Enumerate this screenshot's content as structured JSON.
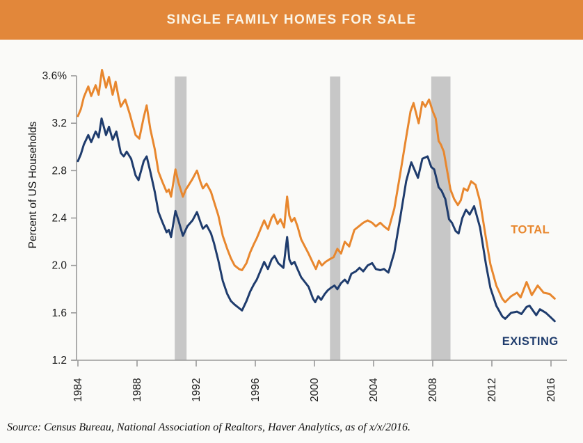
{
  "header": {
    "title": "SINGLE FAMILY HOMES FOR SALE",
    "bg_color": "#E2873A"
  },
  "source": {
    "text": "Source: Census Bureau, National Association of Realtors, Haver Analytics, as of x/x/2016."
  },
  "chart_data": {
    "type": "line",
    "title": "SINGLE FAMILY HOMES FOR SALE",
    "xlabel": "",
    "ylabel": "Percent of US Households",
    "ylim": [
      1.2,
      3.6
    ],
    "xlim": [
      1984,
      2017
    ],
    "grid": false,
    "legend_position": "inline-right",
    "x_ticks": [
      1984,
      1988,
      1992,
      1996,
      2000,
      2004,
      2008,
      2012,
      2016
    ],
    "y_ticks": [
      {
        "value": 3.6,
        "label": "3.6%"
      },
      {
        "value": 3.2,
        "label": "3.2"
      },
      {
        "value": 2.8,
        "label": "2.8"
      },
      {
        "value": 2.4,
        "label": "2.4"
      },
      {
        "value": 2.0,
        "label": "2.0"
      },
      {
        "value": 1.6,
        "label": "1.6"
      },
      {
        "value": 1.2,
        "label": "1.2"
      }
    ],
    "recession_bands": [
      {
        "from": 1990.55,
        "to": 1991.35
      },
      {
        "from": 2001.05,
        "to": 2001.75
      },
      {
        "from": 2007.9,
        "to": 2009.2
      }
    ],
    "colors": {
      "band": "#C7C7C7",
      "axis": "#999999",
      "tick_text": "#1A1A1A"
    },
    "series": [
      {
        "name": "TOTAL",
        "color": "#E8872E",
        "label_pos": {
          "x": 2014.6,
          "y": 2.27
        },
        "points": [
          [
            1984.0,
            3.26
          ],
          [
            1984.2,
            3.32
          ],
          [
            1984.4,
            3.42
          ],
          [
            1984.7,
            3.51
          ],
          [
            1984.9,
            3.43
          ],
          [
            1985.2,
            3.52
          ],
          [
            1985.4,
            3.44
          ],
          [
            1985.63,
            3.65
          ],
          [
            1985.9,
            3.5
          ],
          [
            1986.1,
            3.59
          ],
          [
            1986.35,
            3.44
          ],
          [
            1986.55,
            3.55
          ],
          [
            1986.75,
            3.42
          ],
          [
            1986.9,
            3.34
          ],
          [
            1987.2,
            3.4
          ],
          [
            1987.5,
            3.28
          ],
          [
            1987.9,
            3.1
          ],
          [
            1988.15,
            3.07
          ],
          [
            1988.45,
            3.25
          ],
          [
            1988.65,
            3.35
          ],
          [
            1988.9,
            3.15
          ],
          [
            1989.2,
            2.98
          ],
          [
            1989.45,
            2.79
          ],
          [
            1989.7,
            2.71
          ],
          [
            1990.0,
            2.62
          ],
          [
            1990.15,
            2.64
          ],
          [
            1990.3,
            2.58
          ],
          [
            1990.6,
            2.81
          ],
          [
            1990.8,
            2.7
          ],
          [
            1991.1,
            2.58
          ],
          [
            1991.3,
            2.64
          ],
          [
            1991.5,
            2.68
          ],
          [
            1991.75,
            2.73
          ],
          [
            1992.05,
            2.8
          ],
          [
            1992.3,
            2.7
          ],
          [
            1992.45,
            2.65
          ],
          [
            1992.7,
            2.69
          ],
          [
            1993.0,
            2.62
          ],
          [
            1993.2,
            2.54
          ],
          [
            1993.5,
            2.42
          ],
          [
            1993.8,
            2.25
          ],
          [
            1994.1,
            2.14
          ],
          [
            1994.35,
            2.06
          ],
          [
            1994.6,
            2.0
          ],
          [
            1994.9,
            1.97
          ],
          [
            1995.1,
            1.96
          ],
          [
            1995.4,
            2.02
          ],
          [
            1995.65,
            2.11
          ],
          [
            1995.9,
            2.18
          ],
          [
            1996.1,
            2.23
          ],
          [
            1996.4,
            2.32
          ],
          [
            1996.6,
            2.38
          ],
          [
            1996.85,
            2.31
          ],
          [
            1997.1,
            2.4
          ],
          [
            1997.25,
            2.43
          ],
          [
            1997.5,
            2.35
          ],
          [
            1997.7,
            2.39
          ],
          [
            1997.95,
            2.32
          ],
          [
            1998.15,
            2.58
          ],
          [
            1998.3,
            2.42
          ],
          [
            1998.45,
            2.37
          ],
          [
            1998.65,
            2.4
          ],
          [
            1998.85,
            2.33
          ],
          [
            1999.1,
            2.22
          ],
          [
            1999.35,
            2.16
          ],
          [
            1999.6,
            2.1
          ],
          [
            1999.9,
            2.02
          ],
          [
            2000.1,
            1.97
          ],
          [
            2000.3,
            2.04
          ],
          [
            2000.5,
            2.0
          ],
          [
            2000.75,
            2.03
          ],
          [
            2001.0,
            2.05
          ],
          [
            2001.3,
            2.07
          ],
          [
            2001.55,
            2.14
          ],
          [
            2001.8,
            2.1
          ],
          [
            2002.05,
            2.2
          ],
          [
            2002.35,
            2.16
          ],
          [
            2002.7,
            2.3
          ],
          [
            2003.0,
            2.33
          ],
          [
            2003.3,
            2.36
          ],
          [
            2003.6,
            2.38
          ],
          [
            2003.9,
            2.36
          ],
          [
            2004.15,
            2.33
          ],
          [
            2004.45,
            2.36
          ],
          [
            2004.7,
            2.33
          ],
          [
            2005.0,
            2.3
          ],
          [
            2005.4,
            2.48
          ],
          [
            2005.8,
            2.77
          ],
          [
            2006.2,
            3.08
          ],
          [
            2006.5,
            3.3
          ],
          [
            2006.7,
            3.37
          ],
          [
            2007.05,
            3.2
          ],
          [
            2007.3,
            3.38
          ],
          [
            2007.5,
            3.34
          ],
          [
            2007.75,
            3.4
          ],
          [
            2008.0,
            3.3
          ],
          [
            2008.2,
            3.24
          ],
          [
            2008.4,
            3.05
          ],
          [
            2008.55,
            3.02
          ],
          [
            2008.75,
            2.96
          ],
          [
            2009.0,
            2.78
          ],
          [
            2009.2,
            2.64
          ],
          [
            2009.45,
            2.56
          ],
          [
            2009.7,
            2.51
          ],
          [
            2009.9,
            2.55
          ],
          [
            2010.1,
            2.65
          ],
          [
            2010.35,
            2.63
          ],
          [
            2010.6,
            2.71
          ],
          [
            2010.9,
            2.68
          ],
          [
            2011.2,
            2.54
          ],
          [
            2011.6,
            2.23
          ],
          [
            2011.9,
            2.01
          ],
          [
            2012.3,
            1.83
          ],
          [
            2012.7,
            1.72
          ],
          [
            2012.9,
            1.69
          ],
          [
            2013.3,
            1.74
          ],
          [
            2013.7,
            1.77
          ],
          [
            2013.95,
            1.73
          ],
          [
            2014.35,
            1.86
          ],
          [
            2014.7,
            1.75
          ],
          [
            2015.1,
            1.83
          ],
          [
            2015.5,
            1.77
          ],
          [
            2015.9,
            1.76
          ],
          [
            2016.25,
            1.72
          ]
        ]
      },
      {
        "name": "EXISTING",
        "color": "#1F3C6D",
        "label_pos": {
          "x": 2014.6,
          "y": 1.33
        },
        "points": [
          [
            1984.0,
            2.88
          ],
          [
            1984.2,
            2.94
          ],
          [
            1984.4,
            3.02
          ],
          [
            1984.7,
            3.1
          ],
          [
            1984.9,
            3.04
          ],
          [
            1985.2,
            3.13
          ],
          [
            1985.4,
            3.08
          ],
          [
            1985.6,
            3.24
          ],
          [
            1985.9,
            3.1
          ],
          [
            1986.1,
            3.17
          ],
          [
            1986.35,
            3.06
          ],
          [
            1986.6,
            3.13
          ],
          [
            1986.9,
            2.95
          ],
          [
            1987.1,
            2.92
          ],
          [
            1987.3,
            2.96
          ],
          [
            1987.6,
            2.9
          ],
          [
            1987.9,
            2.76
          ],
          [
            1988.1,
            2.72
          ],
          [
            1988.45,
            2.88
          ],
          [
            1988.65,
            2.92
          ],
          [
            1988.9,
            2.79
          ],
          [
            1989.2,
            2.62
          ],
          [
            1989.45,
            2.45
          ],
          [
            1989.7,
            2.37
          ],
          [
            1990.0,
            2.28
          ],
          [
            1990.15,
            2.3
          ],
          [
            1990.3,
            2.24
          ],
          [
            1990.6,
            2.46
          ],
          [
            1990.8,
            2.38
          ],
          [
            1991.1,
            2.25
          ],
          [
            1991.4,
            2.33
          ],
          [
            1991.75,
            2.38
          ],
          [
            1992.05,
            2.45
          ],
          [
            1992.3,
            2.36
          ],
          [
            1992.45,
            2.31
          ],
          [
            1992.7,
            2.34
          ],
          [
            1993.0,
            2.27
          ],
          [
            1993.2,
            2.19
          ],
          [
            1993.5,
            2.04
          ],
          [
            1993.8,
            1.87
          ],
          [
            1994.1,
            1.76
          ],
          [
            1994.35,
            1.7
          ],
          [
            1994.6,
            1.67
          ],
          [
            1994.9,
            1.64
          ],
          [
            1995.1,
            1.62
          ],
          [
            1995.4,
            1.7
          ],
          [
            1995.65,
            1.78
          ],
          [
            1995.9,
            1.84
          ],
          [
            1996.1,
            1.88
          ],
          [
            1996.4,
            1.97
          ],
          [
            1996.6,
            2.03
          ],
          [
            1996.85,
            1.97
          ],
          [
            1997.1,
            2.05
          ],
          [
            1997.3,
            2.08
          ],
          [
            1997.55,
            2.02
          ],
          [
            1997.9,
            1.98
          ],
          [
            1998.15,
            2.24
          ],
          [
            1998.3,
            2.05
          ],
          [
            1998.45,
            2.01
          ],
          [
            1998.65,
            2.03
          ],
          [
            1998.85,
            1.97
          ],
          [
            1999.1,
            1.9
          ],
          [
            1999.35,
            1.86
          ],
          [
            1999.6,
            1.82
          ],
          [
            1999.9,
            1.72
          ],
          [
            2000.05,
            1.69
          ],
          [
            2000.25,
            1.74
          ],
          [
            2000.45,
            1.71
          ],
          [
            2000.7,
            1.76
          ],
          [
            2000.9,
            1.79
          ],
          [
            2001.1,
            1.81
          ],
          [
            2001.35,
            1.83
          ],
          [
            2001.55,
            1.8
          ],
          [
            2001.8,
            1.85
          ],
          [
            2002.05,
            1.88
          ],
          [
            2002.25,
            1.85
          ],
          [
            2002.5,
            1.93
          ],
          [
            2002.8,
            1.95
          ],
          [
            2003.05,
            1.98
          ],
          [
            2003.3,
            1.95
          ],
          [
            2003.6,
            2.0
          ],
          [
            2003.9,
            2.02
          ],
          [
            2004.15,
            1.97
          ],
          [
            2004.45,
            1.96
          ],
          [
            2004.7,
            1.97
          ],
          [
            2005.0,
            1.94
          ],
          [
            2005.4,
            2.11
          ],
          [
            2005.8,
            2.4
          ],
          [
            2006.2,
            2.71
          ],
          [
            2006.55,
            2.87
          ],
          [
            2007.0,
            2.74
          ],
          [
            2007.3,
            2.9
          ],
          [
            2007.65,
            2.92
          ],
          [
            2007.9,
            2.83
          ],
          [
            2008.1,
            2.81
          ],
          [
            2008.4,
            2.66
          ],
          [
            2008.6,
            2.63
          ],
          [
            2008.85,
            2.56
          ],
          [
            2009.1,
            2.39
          ],
          [
            2009.3,
            2.36
          ],
          [
            2009.55,
            2.29
          ],
          [
            2009.75,
            2.27
          ],
          [
            2010.0,
            2.4
          ],
          [
            2010.25,
            2.47
          ],
          [
            2010.5,
            2.43
          ],
          [
            2010.8,
            2.5
          ],
          [
            2011.2,
            2.32
          ],
          [
            2011.6,
            2.01
          ],
          [
            2011.9,
            1.81
          ],
          [
            2012.3,
            1.66
          ],
          [
            2012.7,
            1.57
          ],
          [
            2012.9,
            1.55
          ],
          [
            2013.3,
            1.6
          ],
          [
            2013.7,
            1.61
          ],
          [
            2014.0,
            1.59
          ],
          [
            2014.35,
            1.65
          ],
          [
            2014.55,
            1.66
          ],
          [
            2015.0,
            1.58
          ],
          [
            2015.25,
            1.63
          ],
          [
            2015.65,
            1.6
          ],
          [
            2016.0,
            1.56
          ],
          [
            2016.25,
            1.53
          ]
        ]
      }
    ]
  }
}
